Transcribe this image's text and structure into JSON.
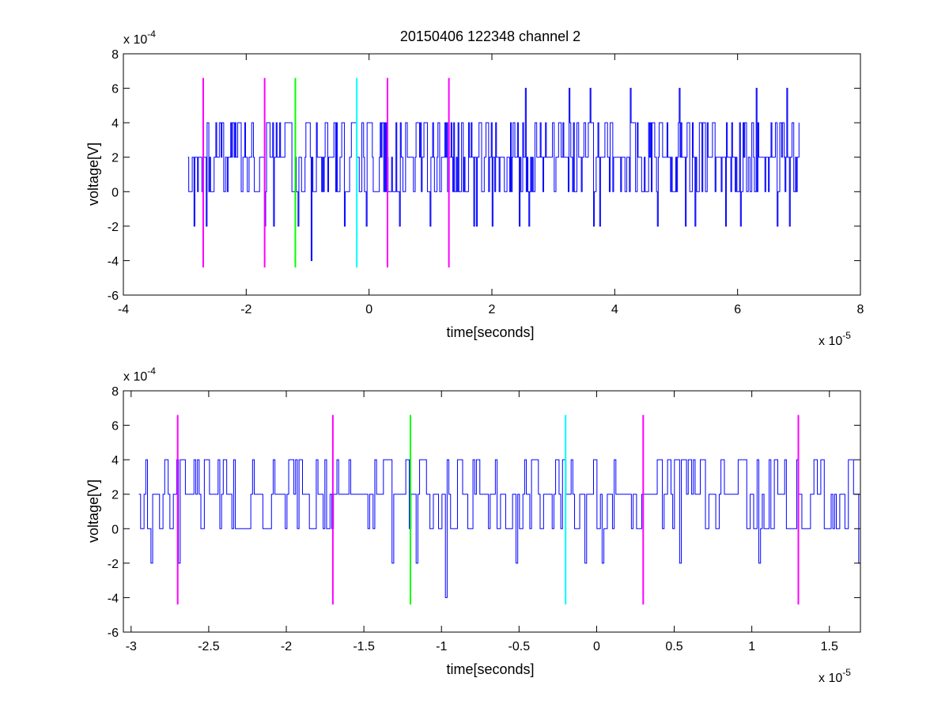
{
  "chart_data": [
    {
      "type": "line",
      "title": "20150406 122348 channel 2",
      "xlabel": "time[seconds]",
      "ylabel": "voltage[V]",
      "x_multiplier": "x 10",
      "x_multiplier_exp": "-5",
      "y_multiplier": "x 10",
      "y_multiplier_exp": "-4",
      "xlim": [
        -4,
        8
      ],
      "ylim": [
        -6,
        8
      ],
      "x_ticks": [
        -4,
        -2,
        0,
        2,
        4,
        6,
        8
      ],
      "x_tick_labels": [
        "-4",
        "-2",
        "0",
        "2",
        "4",
        "6",
        "8"
      ],
      "y_ticks": [
        -6,
        -4,
        -2,
        0,
        2,
        4,
        6,
        8
      ],
      "y_tick_labels": [
        "-6",
        "-4",
        "-2",
        "0",
        "2",
        "4",
        "6",
        "8"
      ],
      "grid": false,
      "series": [
        {
          "color": "#0000ff",
          "x_range": [
            -2.95,
            7.0
          ],
          "num_points": 700,
          "typical_values": [
            0,
            2,
            4
          ],
          "occasional_values": [
            -2,
            6
          ],
          "rare_values": [
            -4
          ],
          "spike_times": [
            {
              "x": 2.55,
              "y": 6
            },
            {
              "x": 3.25,
              "y": 6
            },
            {
              "x": 3.6,
              "y": 6
            },
            {
              "x": 4.25,
              "y": 6
            },
            {
              "x": 5.05,
              "y": 6
            },
            {
              "x": 6.3,
              "y": 6
            },
            {
              "x": 6.65,
              "y": 6
            },
            {
              "x": 6.8,
              "y": 6
            },
            {
              "x": -2.85,
              "y": -2
            },
            {
              "x": -2.65,
              "y": -2
            },
            {
              "x": -1.7,
              "y": -2
            },
            {
              "x": -1.55,
              "y": -2
            },
            {
              "x": -1.15,
              "y": -2
            },
            {
              "x": -0.95,
              "y": -4
            },
            {
              "x": -0.4,
              "y": -2
            },
            {
              "x": -0.05,
              "y": -2
            },
            {
              "x": 0.5,
              "y": -2
            },
            {
              "x": 1.0,
              "y": -2
            },
            {
              "x": 1.7,
              "y": -2
            },
            {
              "x": 1.75,
              "y": -2
            },
            {
              "x": 2.0,
              "y": -2
            },
            {
              "x": 2.45,
              "y": -2
            },
            {
              "x": 2.6,
              "y": -2
            },
            {
              "x": 3.65,
              "y": -2
            },
            {
              "x": 3.75,
              "y": -2
            },
            {
              "x": 4.7,
              "y": -2
            },
            {
              "x": 5.15,
              "y": -2
            },
            {
              "x": 5.3,
              "y": -2
            },
            {
              "x": 5.8,
              "y": -2
            },
            {
              "x": 6.05,
              "y": -2
            },
            {
              "x": 6.65,
              "y": -2
            },
            {
              "x": 6.85,
              "y": -2
            }
          ]
        }
      ],
      "markers": [
        {
          "x": -2.7,
          "color": "#ff00ff",
          "ymin": -4.4,
          "ymax": 6.6
        },
        {
          "x": -1.7,
          "color": "#ff00ff",
          "ymin": -4.4,
          "ymax": 6.6
        },
        {
          "x": -1.2,
          "color": "#00ff00",
          "ymin": -4.4,
          "ymax": 6.6
        },
        {
          "x": -0.2,
          "color": "#00ffff",
          "ymin": -4.4,
          "ymax": 6.6
        },
        {
          "x": 0.3,
          "color": "#ff00ff",
          "ymin": -4.4,
          "ymax": 6.6
        },
        {
          "x": 1.3,
          "color": "#ff00ff",
          "ymin": -4.4,
          "ymax": 6.6
        }
      ]
    },
    {
      "type": "line",
      "xlabel": "time[seconds]",
      "ylabel": "voltage[V]",
      "x_multiplier": "x 10",
      "x_multiplier_exp": "-5",
      "y_multiplier": "x 10",
      "y_multiplier_exp": "-4",
      "xlim": [
        -3.05,
        1.7
      ],
      "ylim": [
        -6,
        8
      ],
      "x_ticks": [
        -3,
        -2.5,
        -2,
        -1.5,
        -1,
        -0.5,
        0,
        0.5,
        1,
        1.5
      ],
      "x_tick_labels": [
        "-3",
        "-2.5",
        "-2",
        "-1.5",
        "-1",
        "-0.5",
        "0",
        "0.5",
        "1",
        "1.5"
      ],
      "y_ticks": [
        -6,
        -4,
        -2,
        0,
        2,
        4,
        6,
        8
      ],
      "y_tick_labels": [
        "-6",
        "-4",
        "-2",
        "0",
        "2",
        "4",
        "6",
        "8"
      ],
      "grid": false,
      "series": [
        {
          "color": "#0000ff",
          "x_range": [
            -2.95,
            1.7
          ],
          "num_points": 420,
          "typical_values": [
            0,
            2,
            4
          ],
          "occasional_values": [
            -2
          ],
          "rare_values": [
            -4
          ],
          "spike_times": [
            {
              "x": -2.87,
              "y": -2
            },
            {
              "x": -2.69,
              "y": -2
            },
            {
              "x": -1.32,
              "y": -2
            },
            {
              "x": -1.16,
              "y": -2
            },
            {
              "x": -0.97,
              "y": -4
            },
            {
              "x": -0.52,
              "y": -2
            },
            {
              "x": -0.08,
              "y": -2
            },
            {
              "x": 0.04,
              "y": -2
            },
            {
              "x": 0.54,
              "y": -2
            },
            {
              "x": 1.05,
              "y": -2
            },
            {
              "x": 1.69,
              "y": -2
            }
          ]
        }
      ],
      "markers": [
        {
          "x": -2.7,
          "color": "#ff00ff",
          "ymin": -4.4,
          "ymax": 6.6
        },
        {
          "x": -1.7,
          "color": "#ff00ff",
          "ymin": -4.4,
          "ymax": 6.6
        },
        {
          "x": -1.2,
          "color": "#00ff00",
          "ymin": -4.4,
          "ymax": 6.6
        },
        {
          "x": -0.2,
          "color": "#00ffff",
          "ymin": -4.4,
          "ymax": 6.6
        },
        {
          "x": 0.3,
          "color": "#ff00ff",
          "ymin": -4.4,
          "ymax": 6.6
        },
        {
          "x": 1.3,
          "color": "#ff00ff",
          "ymin": -4.4,
          "ymax": 6.6
        }
      ]
    }
  ]
}
